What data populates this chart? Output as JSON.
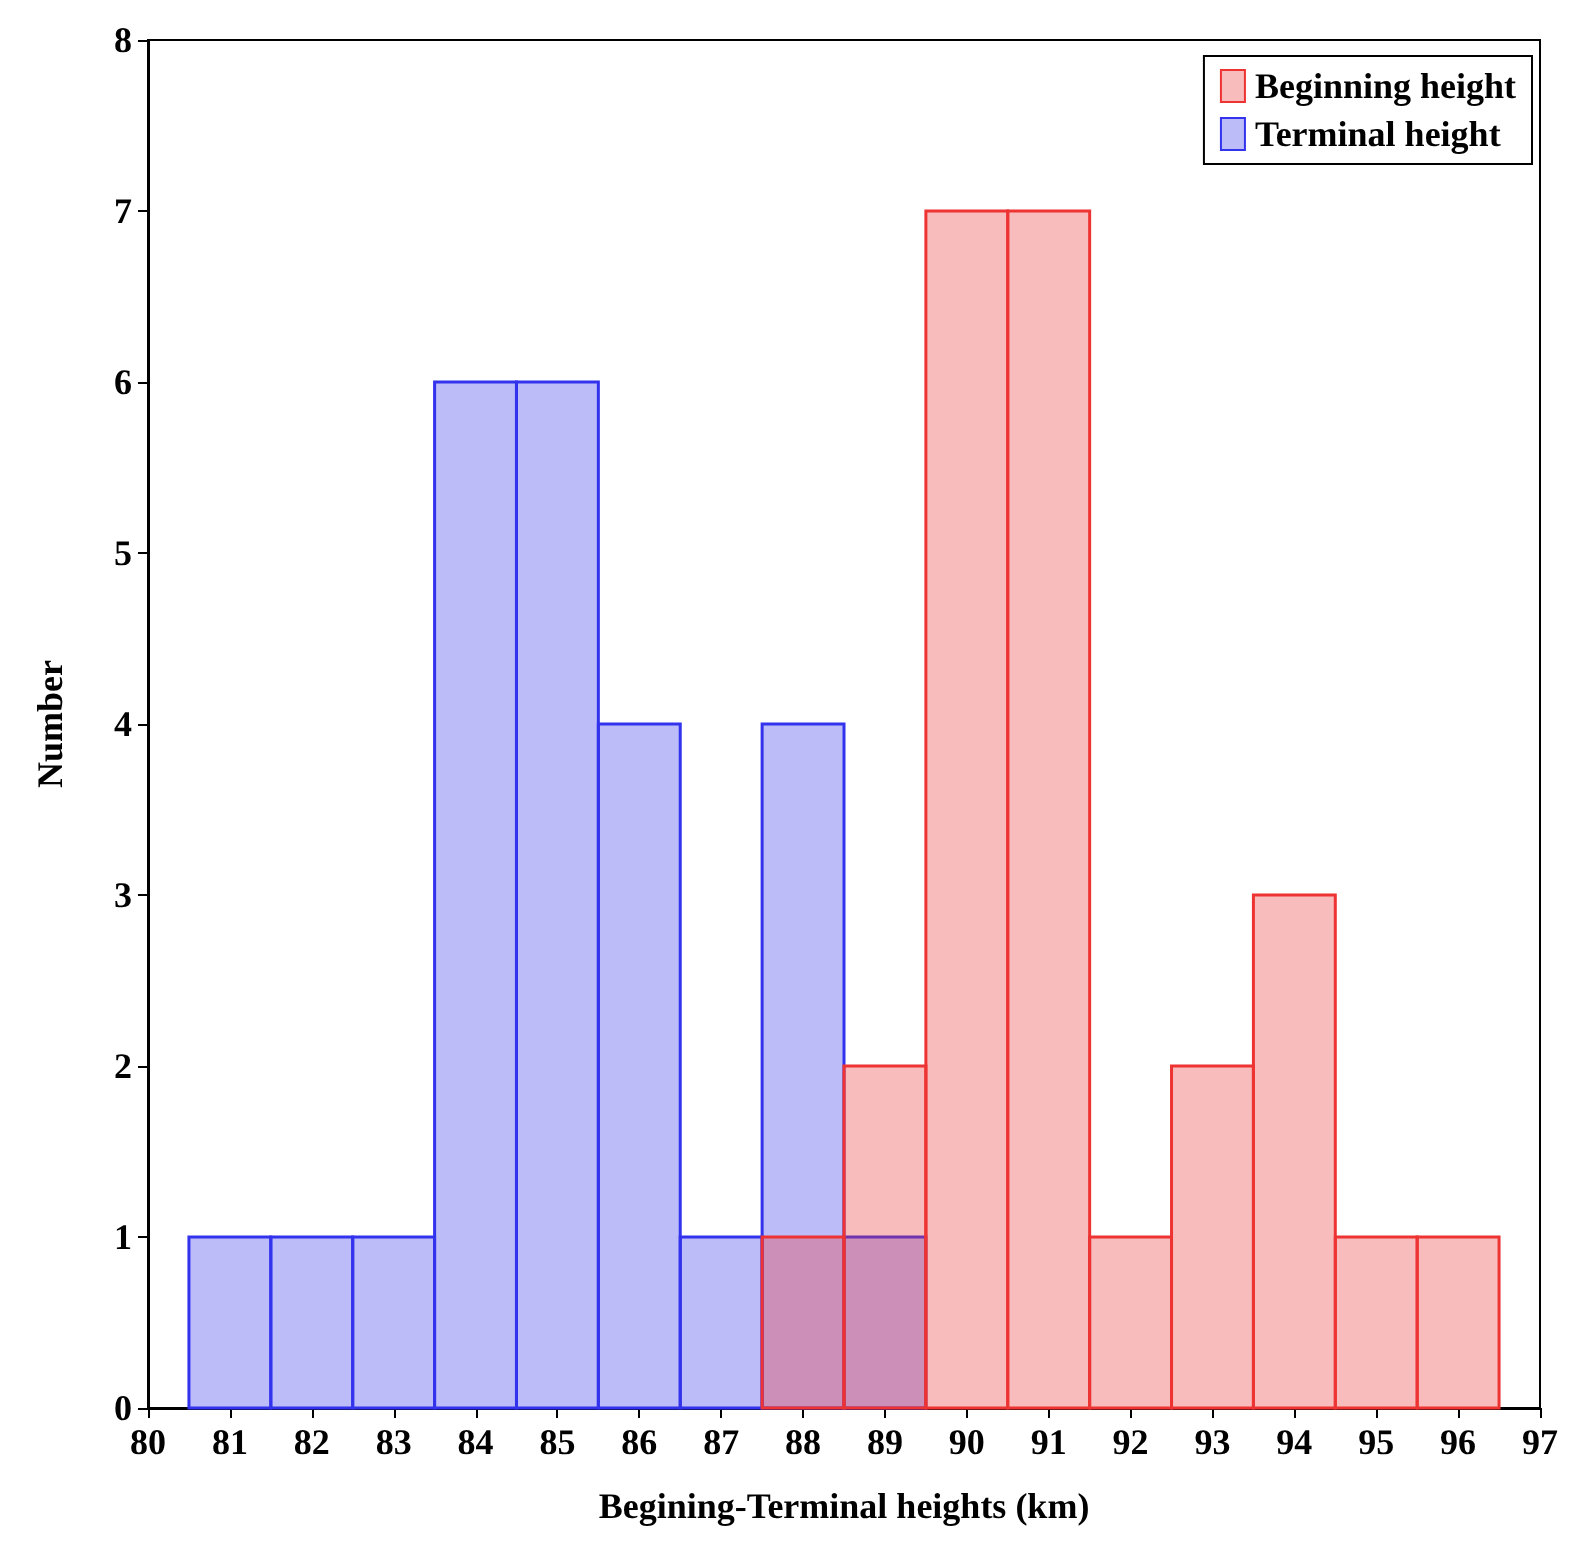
{
  "chart_data": {
    "type": "histogram",
    "xlabel": "Begining-Terminal heights (km)",
    "ylabel": "Number",
    "bins": [
      80.5,
      81.5,
      82.5,
      83.5,
      84.5,
      85.5,
      86.5,
      87.5,
      88.5,
      89.5,
      90.5,
      91.5,
      92.5,
      93.5,
      94.5,
      95.5,
      96.5
    ],
    "series": [
      {
        "name": "Beginning height",
        "color": "#ee3333",
        "values": [
          null,
          null,
          null,
          null,
          null,
          null,
          null,
          1,
          2,
          7,
          7,
          1,
          2,
          3,
          1,
          1
        ]
      },
      {
        "name": "Terminal height",
        "color": "#3333ee",
        "values": [
          1,
          1,
          1,
          6,
          6,
          4,
          1,
          4,
          1,
          null,
          null,
          null,
          null,
          null,
          null,
          null
        ]
      }
    ],
    "xlim": [
      80,
      97
    ],
    "xticks": [
      80,
      81,
      82,
      83,
      84,
      85,
      86,
      87,
      88,
      89,
      90,
      91,
      92,
      93,
      94,
      95,
      96,
      97
    ],
    "ylim": [
      0,
      8
    ],
    "yticks": [
      0,
      1,
      2,
      3,
      4,
      5,
      6,
      7,
      8
    ],
    "grid": false,
    "legend": "top right"
  }
}
